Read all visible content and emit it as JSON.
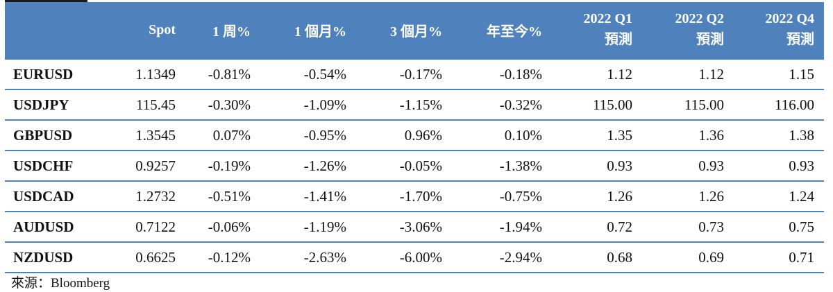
{
  "table": {
    "headers": [
      {
        "line1": ""
      },
      {
        "line1": "Spot"
      },
      {
        "line1": "1 周%"
      },
      {
        "line1": "1 個月%"
      },
      {
        "line1": "3 個月%"
      },
      {
        "line1": "年至今%"
      },
      {
        "line1": "2022 Q1",
        "line2": "預測"
      },
      {
        "line1": "2022 Q2",
        "line2": "預測"
      },
      {
        "line1": "2022 Q4",
        "line2": "預測"
      }
    ],
    "rows": [
      {
        "pair": "EURUSD",
        "spot": "1.1349",
        "w1": "-0.81%",
        "m1": "-0.54%",
        "m3": "-0.17%",
        "ytd": "-0.18%",
        "q1": "1.12",
        "q2": "1.12",
        "q4": "1.15"
      },
      {
        "pair": "USDJPY",
        "spot": "115.45",
        "w1": "-0.30%",
        "m1": "-1.09%",
        "m3": "-1.15%",
        "ytd": "-0.32%",
        "q1": "115.00",
        "q2": "115.00",
        "q4": "116.00"
      },
      {
        "pair": "GBPUSD",
        "spot": "1.3545",
        "w1": "0.07%",
        "m1": "-0.95%",
        "m3": "0.96%",
        "ytd": "0.10%",
        "q1": "1.35",
        "q2": "1.36",
        "q4": "1.38"
      },
      {
        "pair": "USDCHF",
        "spot": "0.9257",
        "w1": "-0.19%",
        "m1": "-1.26%",
        "m3": "-0.05%",
        "ytd": "-1.38%",
        "q1": "0.93",
        "q2": "0.93",
        "q4": "0.93"
      },
      {
        "pair": "USDCAD",
        "spot": "1.2732",
        "w1": "-0.51%",
        "m1": "-1.41%",
        "m3": "-1.70%",
        "ytd": "-0.75%",
        "q1": "1.26",
        "q2": "1.26",
        "q4": "1.24"
      },
      {
        "pair": "AUDUSD",
        "spot": "0.7122",
        "w1": "-0.06%",
        "m1": "-1.19%",
        "m3": "-3.06%",
        "ytd": "-1.94%",
        "q1": "0.72",
        "q2": "0.73",
        "q4": "0.75"
      },
      {
        "pair": "NZDUSD",
        "spot": "0.6625",
        "w1": "-0.12%",
        "m1": "-2.63%",
        "m3": "-6.00%",
        "ytd": "-2.94%",
        "q1": "0.68",
        "q2": "0.69",
        "q4": "0.71"
      }
    ]
  },
  "source": "來源：Bloomberg",
  "colors": {
    "header_bg": "#4f81bd",
    "header_text": "#ffffff",
    "rule": "#4f81bd"
  }
}
